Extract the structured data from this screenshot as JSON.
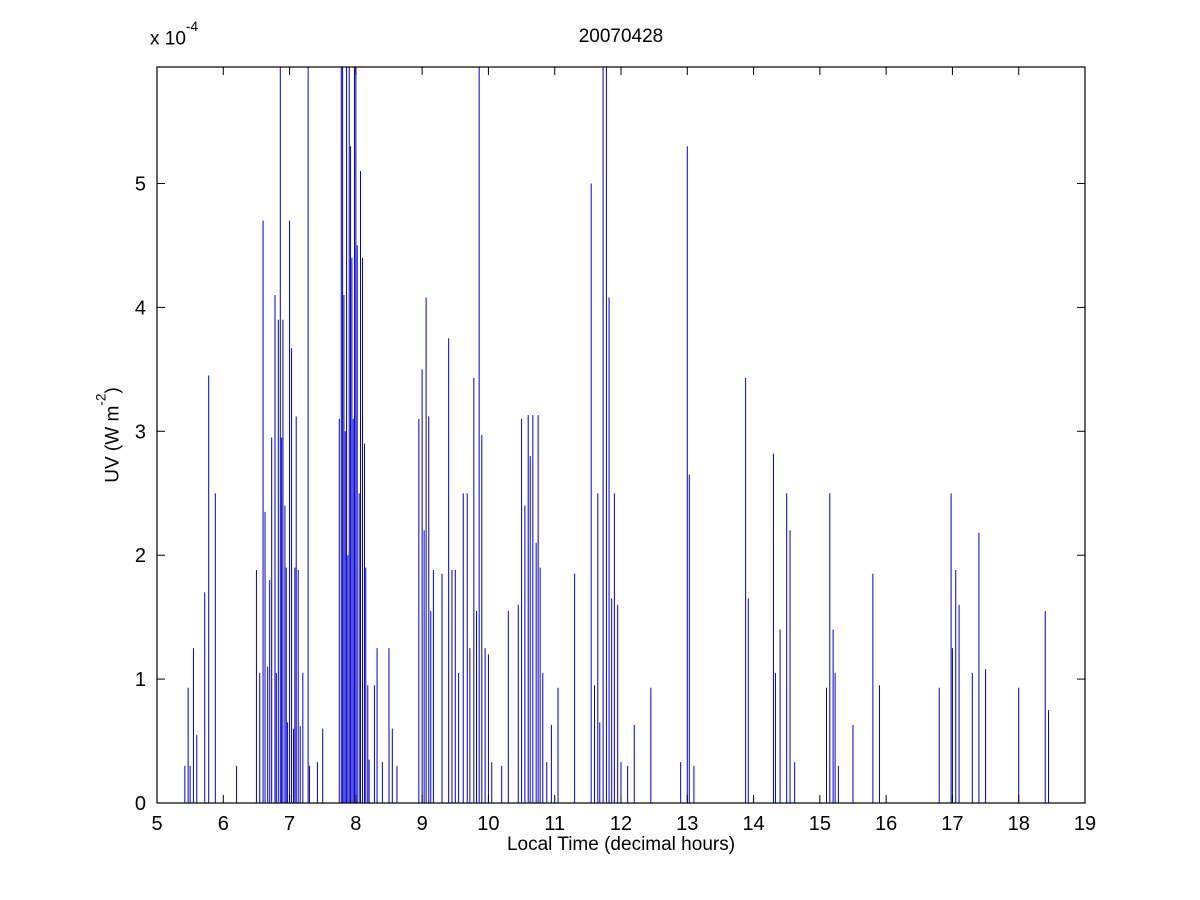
{
  "chart_data": {
    "type": "stem",
    "title": "20070428",
    "xlabel": "Local Time (decimal hours)",
    "ylabel_prefix": "UV (W m",
    "ylabel_sup": "-2",
    "ylabel_suffix": ")",
    "y_exponent_prefix": "x 10",
    "y_exponent_sup": "-4",
    "xlim": [
      5,
      19
    ],
    "ylim": [
      0,
      5.94
    ],
    "xticks": [
      5,
      6,
      7,
      8,
      9,
      10,
      11,
      12,
      13,
      14,
      15,
      16,
      17,
      18,
      19
    ],
    "yticks": [
      0,
      1,
      2,
      3,
      4,
      5
    ],
    "line_color": "#0000cc",
    "grid": false,
    "legend": null,
    "points": [
      [
        5.42,
        0.3
      ],
      [
        5.47,
        0.93
      ],
      [
        5.5,
        0.3
      ],
      [
        5.55,
        1.25
      ],
      [
        5.6,
        0.55
      ],
      [
        5.72,
        1.7
      ],
      [
        5.78,
        3.45
      ],
      [
        5.88,
        2.5
      ],
      [
        6.2,
        0.3
      ],
      [
        6.5,
        1.88
      ],
      [
        6.55,
        1.05
      ],
      [
        6.6,
        4.7
      ],
      [
        6.63,
        2.35
      ],
      [
        6.67,
        1.1
      ],
      [
        6.7,
        1.8
      ],
      [
        6.73,
        2.95
      ],
      [
        6.78,
        4.1
      ],
      [
        6.8,
        1.05
      ],
      [
        6.83,
        3.9
      ],
      [
        6.86,
        5.94
      ],
      [
        6.88,
        2.95
      ],
      [
        6.9,
        3.9
      ],
      [
        6.93,
        2.4
      ],
      [
        6.95,
        1.9
      ],
      [
        6.97,
        0.65
      ],
      [
        7.0,
        4.7
      ],
      [
        7.03,
        3.67
      ],
      [
        7.06,
        0.6
      ],
      [
        7.08,
        1.9
      ],
      [
        7.1,
        3.12
      ],
      [
        7.13,
        1.88
      ],
      [
        7.16,
        0.62
      ],
      [
        7.2,
        1.05
      ],
      [
        7.28,
        5.94
      ],
      [
        7.3,
        0.3
      ],
      [
        7.42,
        0.33
      ],
      [
        7.5,
        0.6
      ],
      [
        7.75,
        3.1
      ],
      [
        7.78,
        5.94
      ],
      [
        7.8,
        5.94
      ],
      [
        7.82,
        4.1
      ],
      [
        7.84,
        3.0
      ],
      [
        7.86,
        5.94
      ],
      [
        7.88,
        2.0
      ],
      [
        7.9,
        5.94
      ],
      [
        7.92,
        5.3
      ],
      [
        7.94,
        4.4
      ],
      [
        7.96,
        3.1
      ],
      [
        7.98,
        5.94
      ],
      [
        8.0,
        5.94
      ],
      [
        8.02,
        4.5
      ],
      [
        8.05,
        2.5
      ],
      [
        8.07,
        5.1
      ],
      [
        8.1,
        4.4
      ],
      [
        8.13,
        2.9
      ],
      [
        8.15,
        1.9
      ],
      [
        8.18,
        0.95
      ],
      [
        8.2,
        0.35
      ],
      [
        8.28,
        0.95
      ],
      [
        8.32,
        1.25
      ],
      [
        8.4,
        0.33
      ],
      [
        8.5,
        1.25
      ],
      [
        8.55,
        0.6
      ],
      [
        8.62,
        0.3
      ],
      [
        8.95,
        3.1
      ],
      [
        9.0,
        3.5
      ],
      [
        9.03,
        2.2
      ],
      [
        9.06,
        4.08
      ],
      [
        9.1,
        3.12
      ],
      [
        9.13,
        1.55
      ],
      [
        9.17,
        1.88
      ],
      [
        9.3,
        1.85
      ],
      [
        9.4,
        3.75
      ],
      [
        9.45,
        1.88
      ],
      [
        9.5,
        1.88
      ],
      [
        9.55,
        1.05
      ],
      [
        9.62,
        2.5
      ],
      [
        9.68,
        2.5
      ],
      [
        9.72,
        1.25
      ],
      [
        9.78,
        3.43
      ],
      [
        9.82,
        1.55
      ],
      [
        9.86,
        5.94
      ],
      [
        9.9,
        2.97
      ],
      [
        9.95,
        1.25
      ],
      [
        10.0,
        1.2
      ],
      [
        10.05,
        0.33
      ],
      [
        10.2,
        0.3
      ],
      [
        10.3,
        1.55
      ],
      [
        10.45,
        1.6
      ],
      [
        10.5,
        3.1
      ],
      [
        10.55,
        2.4
      ],
      [
        10.6,
        3.13
      ],
      [
        10.63,
        2.8
      ],
      [
        10.67,
        3.13
      ],
      [
        10.72,
        2.1
      ],
      [
        10.75,
        3.13
      ],
      [
        10.78,
        1.9
      ],
      [
        10.82,
        1.05
      ],
      [
        10.88,
        0.33
      ],
      [
        10.95,
        0.63
      ],
      [
        11.05,
        0.93
      ],
      [
        11.3,
        1.85
      ],
      [
        11.55,
        5.0
      ],
      [
        11.6,
        0.95
      ],
      [
        11.65,
        2.5
      ],
      [
        11.68,
        0.65
      ],
      [
        11.73,
        5.94
      ],
      [
        11.78,
        5.94
      ],
      [
        11.82,
        4.08
      ],
      [
        11.86,
        1.65
      ],
      [
        11.9,
        2.5
      ],
      [
        11.95,
        1.6
      ],
      [
        12.0,
        0.33
      ],
      [
        12.1,
        0.3
      ],
      [
        12.2,
        0.63
      ],
      [
        12.45,
        0.93
      ],
      [
        12.9,
        0.33
      ],
      [
        13.0,
        5.3
      ],
      [
        13.03,
        2.65
      ],
      [
        13.1,
        0.3
      ],
      [
        13.88,
        3.43
      ],
      [
        13.92,
        1.65
      ],
      [
        14.3,
        2.82
      ],
      [
        14.33,
        1.05
      ],
      [
        14.4,
        1.4
      ],
      [
        14.5,
        2.5
      ],
      [
        14.55,
        2.2
      ],
      [
        14.62,
        0.33
      ],
      [
        15.1,
        0.93
      ],
      [
        15.15,
        2.5
      ],
      [
        15.2,
        1.4
      ],
      [
        15.23,
        1.05
      ],
      [
        15.28,
        0.3
      ],
      [
        15.5,
        0.63
      ],
      [
        15.8,
        1.85
      ],
      [
        15.9,
        0.95
      ],
      [
        16.8,
        0.93
      ],
      [
        16.98,
        2.5
      ],
      [
        17.0,
        1.25
      ],
      [
        17.05,
        1.88
      ],
      [
        17.1,
        1.6
      ],
      [
        17.3,
        1.05
      ],
      [
        17.4,
        2.18
      ],
      [
        17.5,
        1.08
      ],
      [
        18.0,
        0.93
      ],
      [
        18.4,
        1.55
      ],
      [
        18.45,
        0.75
      ]
    ]
  }
}
